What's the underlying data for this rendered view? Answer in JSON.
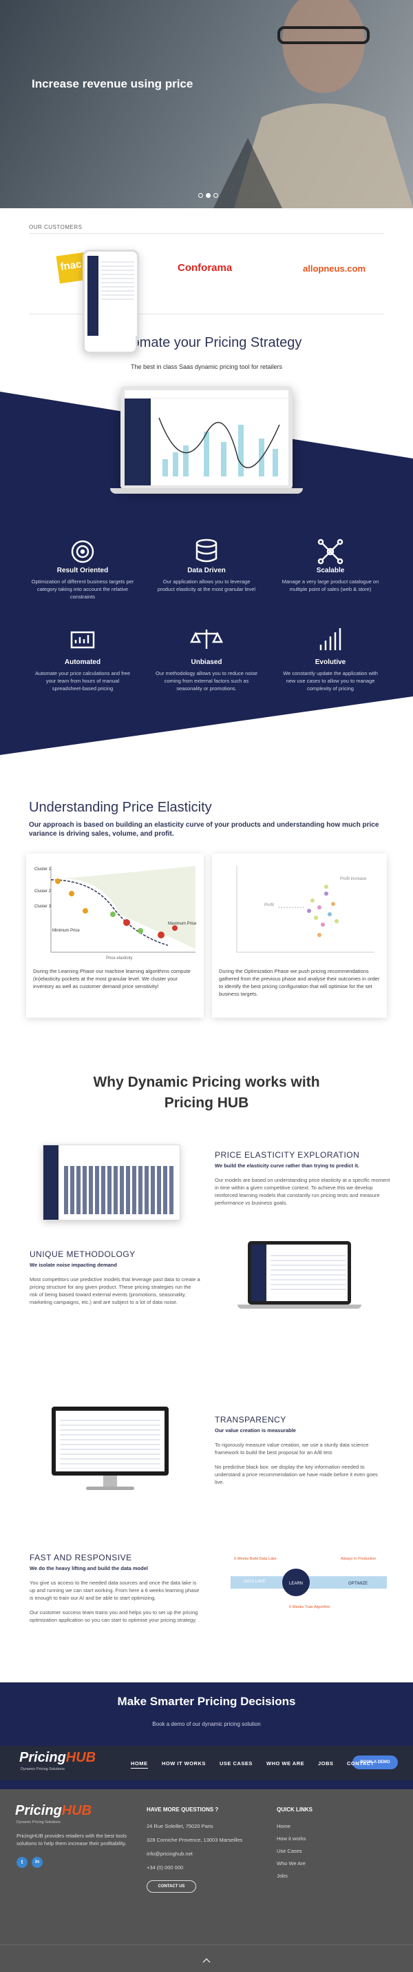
{
  "hero": {
    "title": "Increase revenue using price"
  },
  "customers": {
    "label": "OUR CUSTOMERS",
    "logos": [
      "fnac",
      "Conforama",
      "allopneus.com"
    ]
  },
  "strategy": {
    "title": "Automate your Pricing Strategy",
    "subtitle": "The best in class Saas dynamic pricing tool for retailers"
  },
  "features": [
    {
      "title": "Result Oriented",
      "text": "Optimization of different business targets per category taking into account the relative constraints"
    },
    {
      "title": "Data Driven",
      "text": "Our application allows you to leverage product elasticity at the most granular level"
    },
    {
      "title": "Scalable",
      "text": "Manage a very large product catalogue on multiple point of sales (web & store)"
    },
    {
      "title": "Automated",
      "text": "Automate your price calculations and free your team from hours of manual spreadsheet-based pricing"
    },
    {
      "title": "Unbiased",
      "text": "Our methodology allows you to reduce noise coming from external factors such as seasonality or promotions."
    },
    {
      "title": "Evolutive",
      "text": "We constantly update the application with new use cases to allow you to manage complexity of pricing"
    }
  ],
  "elasticity": {
    "title": "Understanding Price Elasticity",
    "text": "Our approach is based on building an elasticity curve of your products and  understanding how much price variance is driving sales, volume, and profit.",
    "cards": [
      {
        "chart_labels": [
          "Cluster 1",
          "Cluster 2",
          "Cluster 3",
          "Minimum Price",
          "Maximum Price",
          "Price elasticity"
        ],
        "text": "During the Learning Phase our machine learning algorithms compute (in)elasticity pockets at the most granular level. We cluster your inventory as well as customer demand price sensitivity!"
      },
      {
        "chart_labels": [
          "Profit",
          "Profit increase"
        ],
        "text": "During the Optimization Phase we push pricing recommendations gathered from the previous phase and analyse their outcomes in order to identify the best pricing configuration that will optimise for the set business targets."
      }
    ]
  },
  "why": {
    "title": "Why Dynamic Pricing works with Pricing HUB"
  },
  "sections": [
    {
      "title": "PRICE ELASTICITY EXPLORATION",
      "subtitle": "We build the elasticity curve rather than trying to predict it.",
      "paragraphs": [
        "Our models are based on understanding price elasticity at a specific moment in time within a given competitive context. To achieve this we develop reinforced learning models that constantly run pricing tests and measure performance vs business goals."
      ]
    },
    {
      "title": "UNIQUE METHODOLOGY",
      "subtitle": "We isolate noise impacting demand",
      "paragraphs": [
        "Most competitors use predictive models that leverage past data to create a pricing structure for any given product. These pricing strategies run the risk of being biased toward external events (promotions, seasonality, marketing campaigns, etc.) and are subject to a lot of data noise."
      ]
    },
    {
      "title": "TRANSPARENCY",
      "subtitle": "Our value creation is measurable",
      "paragraphs": [
        "To rigorously measure value creation, we use a sturdy data science framework to build the best proposal for an A/B test.",
        "No predictive black box: we display the key information needed to understand a price recommendation we have made before it even goes live."
      ]
    },
    {
      "title": "FAST AND RESPONSIVE",
      "subtitle": "We do the heavy lifting and build the data model",
      "paragraphs": [
        "You give us access to the needed data sources and once the data lake is up and running we can start working. From here a 6 weeks learning phase is enough to train our AI and be able to start optimizing.",
        "Our customer success team trains you and helps you to set up the pricing optimization application so you can start to optimise your pricing strategy."
      ]
    }
  ],
  "timeline": {
    "stages": [
      "DATA LAKE",
      "LEARN",
      "OPTIMIZE"
    ],
    "notes": [
      "6 Weeks Build Data Lake",
      "6 Weeks Train Algorithm",
      "Always In Production"
    ]
  },
  "cta": {
    "title": "Make Smarter Pricing Decisions",
    "subtitle": "Book a demo of our dynamic pricing solution"
  },
  "nav": {
    "logo": "Pricing",
    "logo_accent": "HUB",
    "tagline": "Dynamic Pricing Solutions",
    "links": [
      "HOME",
      "HOW IT WORKS",
      "USE CASES",
      "WHO WE ARE",
      "JOBS",
      "CONTACT"
    ],
    "button": "BOOK A DEMO"
  },
  "footer": {
    "about": "PricingHUB provides retailers with the best tools solutions to help them increase their profitability.",
    "social": [
      "t",
      "in"
    ],
    "contact_title": "HAVE MORE QUESTIONS ?",
    "contact_lines": [
      "24 Rue Soleillet, 75020 Paris",
      "328 Corniche Provence, 13003 Marseilles",
      "info@pricinghub.net",
      "+34 (0) 000 000"
    ],
    "contact_button": "CONTACT US",
    "links_title": "QUICK LINKS",
    "links": [
      "Home",
      "How it works",
      "Use Cases",
      "Who We Are",
      "Jobs"
    ]
  }
}
